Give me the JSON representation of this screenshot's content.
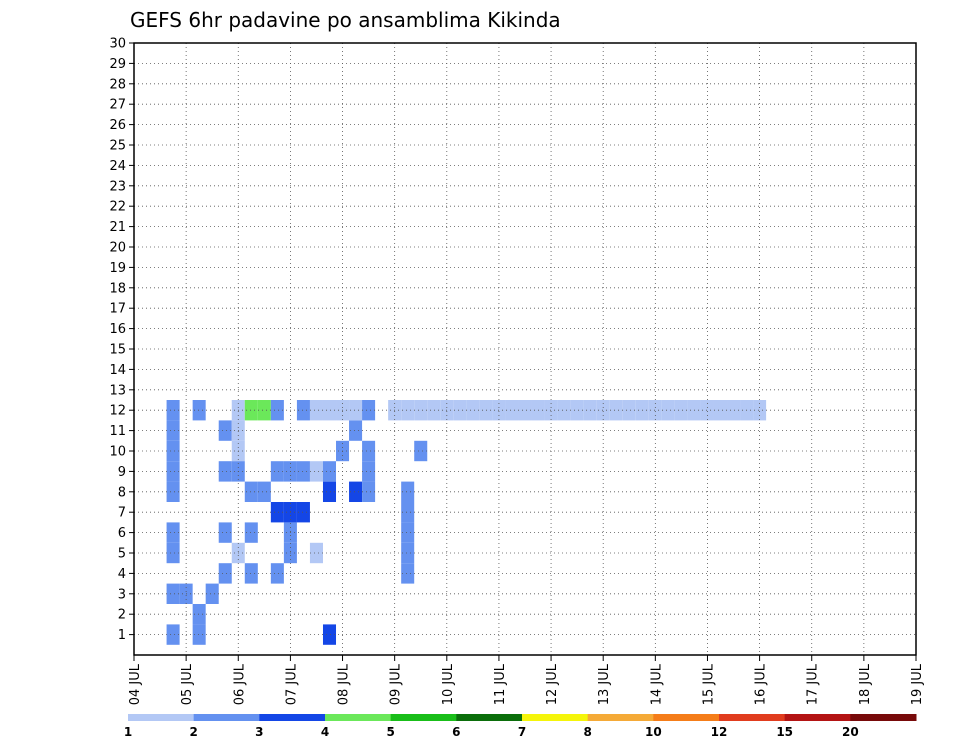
{
  "chart_data": {
    "type": "heatmap",
    "title": "GEFS 6hr padavine po ansamblima Kikinda",
    "xlabel": "",
    "ylabel": "",
    "x_ticks": [
      "04 JUL",
      "05 JUL",
      "06 JUL",
      "07 JUL",
      "08 JUL",
      "09 JUL",
      "10 JUL",
      "11 JUL",
      "12 JUL",
      "13 JUL",
      "14 JUL",
      "15 JUL",
      "16 JUL",
      "17 JUL",
      "18 JUL",
      "19 JUL"
    ],
    "x_range_days": [
      0,
      15
    ],
    "y_ticks": [
      1,
      2,
      3,
      4,
      5,
      6,
      7,
      8,
      9,
      10,
      11,
      12,
      13,
      14,
      15,
      16,
      17,
      18,
      19,
      20,
      21,
      22,
      23,
      24,
      25,
      26,
      27,
      28,
      29,
      30
    ],
    "y_range": [
      0,
      30
    ],
    "grid": true,
    "colorbar": {
      "labels": [
        "1",
        "2",
        "3",
        "4",
        "5",
        "6",
        "7",
        "8",
        "10",
        "12",
        "15",
        "20"
      ],
      "colors": [
        "#b3c8f5",
        "#6491f0",
        "#1446e6",
        "#6be85a",
        "#19be19",
        "#0b6e0b",
        "#f5f50a",
        "#f5aa37",
        "#f57d19",
        "#e13c1e",
        "#b41414",
        "#780a0a"
      ]
    },
    "cells": [
      [
        0.75,
        1,
        2
      ],
      [
        0.75,
        5,
        2
      ],
      [
        1.0,
        3,
        2
      ],
      [
        1.25,
        2,
        2
      ],
      [
        1.5,
        3,
        2
      ],
      [
        1.75,
        4,
        2
      ],
      [
        1.75,
        6,
        2
      ],
      [
        2.0,
        5,
        1
      ],
      [
        2.25,
        4,
        2
      ],
      [
        2.25,
        6,
        2
      ],
      [
        2.75,
        4,
        2
      ],
      [
        2.75,
        7,
        3
      ],
      [
        3.0,
        5,
        2
      ],
      [
        3.0,
        6,
        2
      ],
      [
        3.0,
        7,
        3
      ],
      [
        3.25,
        7,
        3
      ],
      [
        3.5,
        5,
        1
      ],
      [
        3.75,
        1,
        3
      ],
      [
        0.75,
        3,
        2
      ],
      [
        0.75,
        6,
        2
      ],
      [
        0.75,
        8,
        2
      ],
      [
        0.75,
        9,
        2
      ],
      [
        0.75,
        10,
        2
      ],
      [
        0.75,
        11,
        2
      ],
      [
        0.75,
        12,
        2
      ],
      [
        1.25,
        1,
        2
      ],
      [
        1.25,
        12,
        2
      ],
      [
        2.25,
        8,
        2
      ],
      [
        2.5,
        8,
        2
      ],
      [
        3.75,
        8,
        3
      ],
      [
        4.25,
        8,
        3
      ],
      [
        4.5,
        8,
        2
      ],
      [
        4.5,
        9,
        2
      ],
      [
        5.25,
        4,
        2
      ],
      [
        5.25,
        5,
        2
      ],
      [
        5.25,
        6,
        2
      ],
      [
        5.25,
        7,
        2
      ],
      [
        5.25,
        8,
        2
      ],
      [
        1.75,
        9,
        2
      ],
      [
        2.0,
        10,
        1
      ],
      [
        2.0,
        9,
        2
      ],
      [
        2.75,
        9,
        2
      ],
      [
        3.0,
        9,
        2
      ],
      [
        3.25,
        9,
        2
      ],
      [
        3.5,
        9,
        1
      ],
      [
        3.75,
        9,
        2
      ],
      [
        4.0,
        10,
        2
      ],
      [
        4.5,
        10,
        2
      ],
      [
        5.5,
        10,
        2
      ],
      [
        1.75,
        11,
        2
      ],
      [
        2.0,
        11,
        1
      ],
      [
        2.0,
        12,
        1
      ],
      [
        2.25,
        12,
        4
      ],
      [
        2.5,
        12,
        4
      ],
      [
        2.75,
        12,
        2
      ],
      [
        3.25,
        12,
        2
      ],
      [
        3.5,
        12,
        1
      ],
      [
        3.75,
        12,
        1
      ],
      [
        4.0,
        12,
        1
      ],
      [
        4.25,
        11,
        2
      ],
      [
        4.25,
        12,
        1
      ],
      [
        4.5,
        12,
        2
      ],
      [
        5.0,
        12,
        1
      ],
      [
        5.25,
        12,
        1
      ],
      [
        5.5,
        12,
        1
      ],
      [
        5.75,
        12,
        1
      ],
      [
        6.0,
        12,
        1
      ],
      [
        6.25,
        12,
        1
      ],
      [
        6.5,
        12,
        1
      ],
      [
        6.75,
        12,
        1
      ],
      [
        7.0,
        12,
        1
      ],
      [
        7.25,
        12,
        1
      ],
      [
        7.5,
        12,
        1
      ],
      [
        7.75,
        12,
        1
      ],
      [
        8.0,
        12,
        1
      ],
      [
        8.25,
        12,
        1
      ],
      [
        8.5,
        12,
        1
      ],
      [
        8.75,
        12,
        1
      ],
      [
        9.0,
        12,
        1
      ],
      [
        9.25,
        12,
        1
      ],
      [
        9.5,
        12,
        1
      ],
      [
        9.75,
        12,
        1
      ],
      [
        10.0,
        12,
        1
      ],
      [
        10.25,
        12,
        1
      ],
      [
        10.5,
        12,
        1
      ],
      [
        10.75,
        12,
        1
      ],
      [
        11.0,
        12,
        1
      ],
      [
        11.25,
        12,
        1
      ],
      [
        11.5,
        12,
        1
      ],
      [
        11.75,
        12,
        1
      ],
      [
        12.0,
        12,
        1
      ]
    ]
  }
}
